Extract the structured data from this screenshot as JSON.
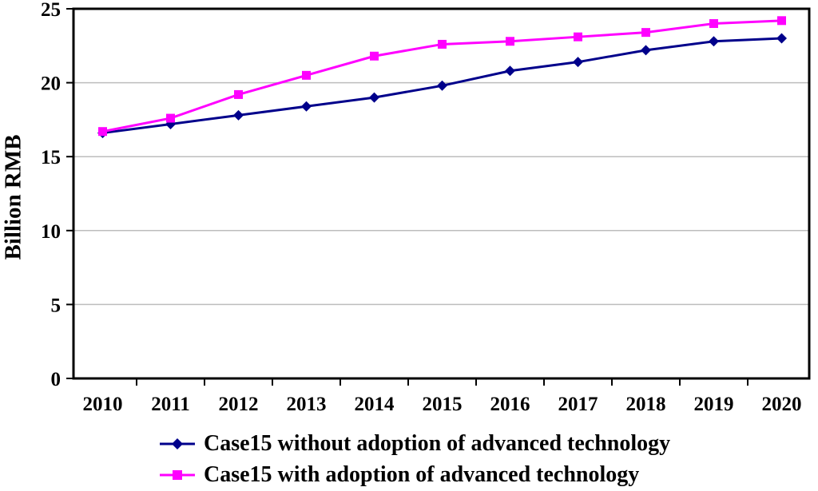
{
  "chart_data": {
    "type": "line",
    "title": "",
    "xlabel": "",
    "ylabel": "Billion RMB",
    "categories": [
      "2010",
      "2011",
      "2012",
      "2013",
      "2014",
      "2015",
      "2016",
      "2017",
      "2018",
      "2019",
      "2020"
    ],
    "series": [
      {
        "name": "Case15 without adoption of advanced technology",
        "color": "#00008B",
        "marker": "diamond",
        "values": [
          16.6,
          17.2,
          17.8,
          18.4,
          19.0,
          19.8,
          20.8,
          21.4,
          22.2,
          22.8,
          23.0
        ]
      },
      {
        "name": "Case15 with adoption of advanced technology",
        "color": "#FF00FF",
        "marker": "square",
        "values": [
          16.7,
          17.6,
          19.2,
          20.5,
          21.8,
          22.6,
          22.8,
          23.1,
          23.4,
          24.0,
          24.2
        ]
      }
    ],
    "ylim": [
      0,
      25
    ],
    "yticks": [
      0,
      5,
      10,
      15,
      20,
      25
    ],
    "grid": "horizontal-only",
    "gridline_color": "#BDBDBD",
    "axis_color": "#000000",
    "legend_position": "bottom"
  }
}
